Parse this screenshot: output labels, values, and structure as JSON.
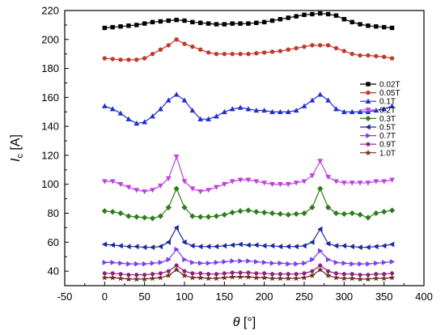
{
  "chart_data": {
    "type": "line",
    "xlabel": "θ [°]",
    "xlabel_symbol": "θ",
    "xlabel_unit": " [°]",
    "ylabel": "Ic [A]",
    "ylabel_symbol": "I",
    "ylabel_sub": "c",
    "ylabel_unit": " [A]",
    "xlim": [
      -50,
      400
    ],
    "ylim": [
      30,
      220
    ],
    "xticks": [
      -50,
      0,
      50,
      100,
      150,
      200,
      250,
      300,
      350,
      400
    ],
    "yticks": [
      40,
      60,
      80,
      100,
      120,
      140,
      160,
      180,
      200,
      220
    ],
    "grid": false,
    "legend_position": "right",
    "series": [
      {
        "name": "0.02T",
        "color": "#000000",
        "marker": "square",
        "x": [
          0,
          10,
          20,
          30,
          40,
          50,
          60,
          70,
          80,
          90,
          100,
          110,
          120,
          130,
          140,
          150,
          160,
          170,
          180,
          190,
          200,
          210,
          220,
          230,
          240,
          250,
          260,
          270,
          280,
          290,
          300,
          310,
          320,
          330,
          340,
          350,
          360
        ],
        "y": [
          208,
          208.5,
          209,
          209.5,
          210,
          211,
          212,
          212.5,
          213,
          213.5,
          213,
          212,
          211.5,
          211,
          210.5,
          210.5,
          211,
          211,
          211,
          211.5,
          212,
          213,
          214,
          215,
          216,
          217,
          217.5,
          218,
          217.5,
          216.5,
          214,
          212,
          210.5,
          209.5,
          209,
          208.5,
          208
        ]
      },
      {
        "name": "0.05T",
        "color": "#c0392b",
        "marker": "circle",
        "x": [
          0,
          10,
          20,
          30,
          40,
          50,
          60,
          70,
          80,
          90,
          100,
          110,
          120,
          130,
          140,
          150,
          160,
          170,
          180,
          190,
          200,
          210,
          220,
          230,
          240,
          250,
          260,
          270,
          280,
          290,
          300,
          310,
          320,
          330,
          340,
          350,
          360
        ],
        "y": [
          187,
          186.5,
          186,
          186,
          186,
          187,
          190,
          193,
          196,
          200,
          197,
          195,
          193,
          191,
          190,
          190,
          190,
          190,
          190,
          190.5,
          191,
          191.5,
          192,
          193,
          194,
          195,
          196,
          196,
          196,
          194,
          192,
          190,
          189,
          189,
          188.5,
          188,
          187
        ]
      },
      {
        "name": "0.1T",
        "color": "#1f2fd0",
        "marker": "triangle",
        "x": [
          0,
          10,
          20,
          30,
          40,
          50,
          60,
          70,
          80,
          90,
          100,
          110,
          120,
          130,
          140,
          150,
          160,
          170,
          180,
          190,
          200,
          210,
          220,
          230,
          240,
          250,
          260,
          270,
          280,
          290,
          300,
          310,
          320,
          330,
          340,
          350,
          360
        ],
        "y": [
          154,
          152,
          149,
          145,
          142,
          143,
          147,
          152,
          158,
          162,
          158,
          151,
          145,
          145,
          147,
          150,
          152,
          153,
          152,
          151,
          151,
          150,
          150,
          150,
          151,
          154,
          158,
          162,
          158,
          152,
          150,
          150,
          150,
          150,
          151,
          152,
          154
        ]
      },
      {
        "name": "0.2T",
        "color": "#c040e0",
        "marker": "triangle-down",
        "x": [
          0,
          10,
          20,
          30,
          40,
          50,
          60,
          70,
          80,
          90,
          100,
          110,
          120,
          130,
          140,
          150,
          160,
          170,
          180,
          190,
          200,
          210,
          220,
          230,
          240,
          250,
          260,
          270,
          280,
          290,
          300,
          310,
          320,
          330,
          340,
          350,
          360
        ],
        "y": [
          102,
          102,
          100,
          98,
          96,
          95,
          96,
          99,
          104,
          119,
          102,
          97,
          95,
          96,
          98,
          100,
          102,
          103,
          103,
          102,
          101,
          100,
          100,
          100,
          101,
          102,
          106,
          116,
          105,
          102,
          101,
          101,
          101,
          101,
          102,
          102,
          103
        ]
      },
      {
        "name": "0.3T",
        "color": "#2e7d1a",
        "marker": "diamond",
        "x": [
          0,
          10,
          20,
          30,
          40,
          50,
          60,
          70,
          80,
          90,
          100,
          110,
          120,
          130,
          140,
          150,
          160,
          170,
          180,
          190,
          200,
          210,
          220,
          230,
          240,
          250,
          260,
          270,
          280,
          290,
          300,
          310,
          320,
          330,
          340,
          350,
          360
        ],
        "y": [
          81.5,
          81,
          80,
          78,
          77.5,
          77,
          76.5,
          78,
          84,
          97,
          84,
          78,
          77.5,
          77.5,
          78,
          79,
          80.5,
          81.5,
          82,
          81,
          80.5,
          80,
          79.5,
          79,
          79.5,
          80,
          84,
          97,
          84,
          80,
          79.5,
          80,
          79,
          77,
          80,
          81,
          82
        ]
      },
      {
        "name": "0.5T",
        "color": "#1a2a9e",
        "marker": "triangle-left",
        "x": [
          0,
          10,
          20,
          30,
          40,
          50,
          60,
          70,
          80,
          90,
          100,
          110,
          120,
          130,
          140,
          150,
          160,
          170,
          180,
          190,
          200,
          210,
          220,
          230,
          240,
          250,
          260,
          270,
          280,
          290,
          300,
          310,
          320,
          330,
          340,
          350,
          360
        ],
        "y": [
          58.5,
          58,
          57.5,
          57,
          57,
          56.5,
          56.5,
          57,
          60,
          70,
          60,
          57.5,
          57,
          57,
          57,
          57.5,
          58,
          58.5,
          58,
          58,
          57.5,
          57.5,
          57,
          57,
          57,
          57.5,
          60,
          69,
          59,
          57.5,
          57.5,
          57,
          56.5,
          56.5,
          57,
          57.5,
          58.5
        ]
      },
      {
        "name": "0.7T",
        "color": "#7a3df0",
        "marker": "triangle-right",
        "x": [
          0,
          10,
          20,
          30,
          40,
          50,
          60,
          70,
          80,
          90,
          100,
          110,
          120,
          130,
          140,
          150,
          160,
          170,
          180,
          190,
          200,
          210,
          220,
          230,
          240,
          250,
          260,
          270,
          280,
          290,
          300,
          310,
          320,
          330,
          340,
          350,
          360
        ],
        "y": [
          46,
          46,
          45.5,
          45,
          45,
          45,
          45.5,
          46,
          48,
          55,
          48,
          46,
          45.5,
          45.5,
          46,
          46.5,
          47,
          47,
          47,
          46.5,
          46,
          45.5,
          45.5,
          45,
          45,
          45.5,
          48,
          54,
          48,
          46,
          45.5,
          45,
          45,
          45,
          45.5,
          46,
          46.5
        ]
      },
      {
        "name": "0.9T",
        "color": "#8e1f7a",
        "marker": "hexagon",
        "x": [
          0,
          10,
          20,
          30,
          40,
          50,
          60,
          70,
          80,
          90,
          100,
          110,
          120,
          130,
          140,
          150,
          160,
          170,
          180,
          190,
          200,
          210,
          220,
          230,
          240,
          250,
          260,
          270,
          280,
          290,
          300,
          310,
          320,
          330,
          340,
          350,
          360
        ],
        "y": [
          38.5,
          38.5,
          38,
          37.5,
          37.5,
          37.5,
          38,
          38.5,
          40,
          44,
          40,
          38.5,
          38.5,
          38,
          38,
          38.5,
          39,
          39,
          39,
          38.5,
          38.5,
          38,
          38,
          38,
          38,
          38.5,
          40,
          44,
          40,
          38.5,
          38,
          38,
          37.5,
          37.5,
          38,
          38,
          38.5
        ]
      },
      {
        "name": "1.0T",
        "color": "#6b2a1a",
        "marker": "star",
        "x": [
          0,
          10,
          20,
          30,
          40,
          50,
          60,
          70,
          80,
          90,
          100,
          110,
          120,
          130,
          140,
          150,
          160,
          170,
          180,
          190,
          200,
          210,
          220,
          230,
          240,
          250,
          260,
          270,
          280,
          290,
          300,
          310,
          320,
          330,
          340,
          350,
          360
        ],
        "y": [
          35.5,
          35.5,
          35,
          34.5,
          34.5,
          34.5,
          35,
          35.5,
          37,
          41,
          37,
          35.5,
          35.5,
          35,
          35,
          35.5,
          36,
          36,
          36,
          35.5,
          35.5,
          35,
          35,
          35,
          35,
          35.5,
          37,
          41,
          37,
          35.5,
          35,
          35,
          34.5,
          34.5,
          35,
          35,
          35.5
        ]
      }
    ]
  }
}
